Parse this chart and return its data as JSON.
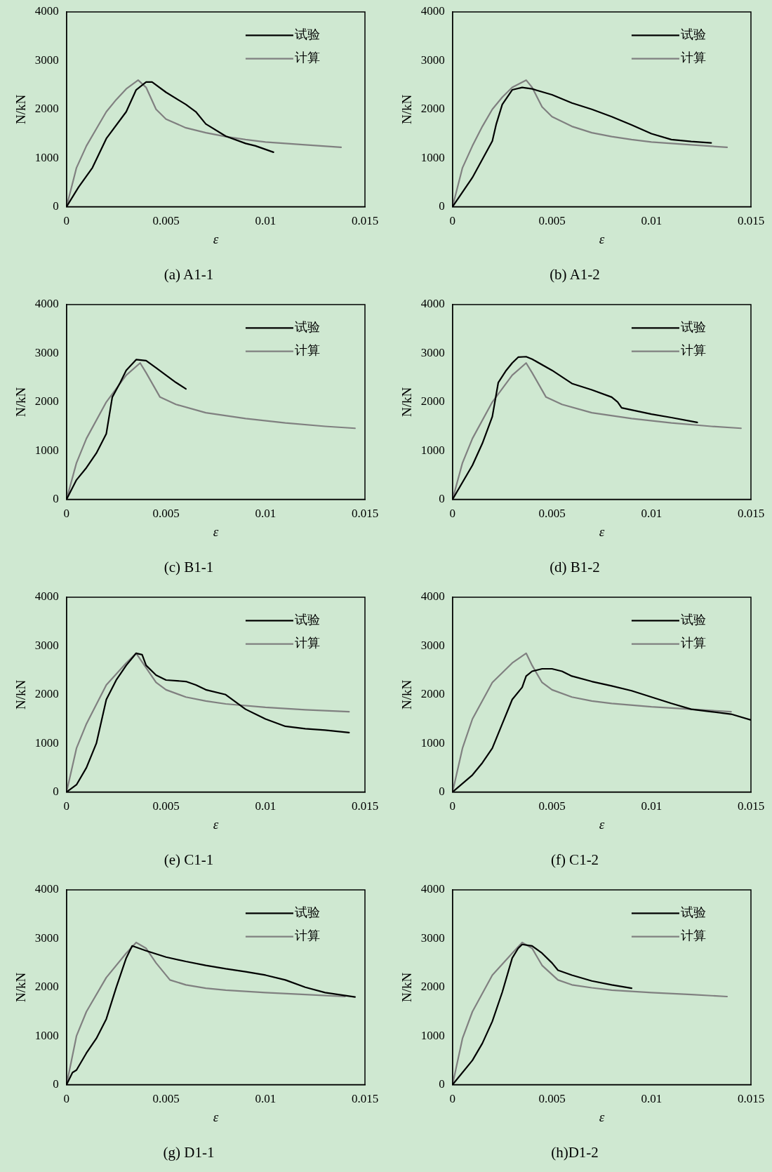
{
  "chart_data": [
    {
      "type": "line",
      "title": "(a) A1-1",
      "xlabel": "ε",
      "ylabel": "N/kN",
      "xlim": [
        0,
        0.015
      ],
      "ylim": [
        0,
        4000
      ],
      "xticks": [
        0,
        0.005,
        0.01,
        0.015
      ],
      "yticks": [
        0,
        1000,
        2000,
        3000,
        4000
      ],
      "grid": false,
      "legend": "top right",
      "marker": "none",
      "line_style": "solid",
      "series": [
        {
          "name": "试验",
          "color": "#000000",
          "x": [
            0,
            0.0006,
            0.0013,
            0.002,
            0.003,
            0.0035,
            0.004,
            0.0043,
            0.005,
            0.006,
            0.0065,
            0.007,
            0.008,
            0.009,
            0.0095,
            0.0104
          ],
          "values": [
            0,
            400,
            800,
            1400,
            1950,
            2400,
            2560,
            2560,
            2350,
            2100,
            1950,
            1700,
            1450,
            1300,
            1250,
            1120
          ]
        },
        {
          "name": "计算",
          "color": "#808080",
          "x": [
            0,
            0.0005,
            0.001,
            0.0015,
            0.002,
            0.0025,
            0.003,
            0.0036,
            0.004,
            0.0045,
            0.005,
            0.006,
            0.007,
            0.008,
            0.009,
            0.01,
            0.011,
            0.012,
            0.0138
          ],
          "values": [
            0,
            800,
            1250,
            1600,
            1950,
            2200,
            2420,
            2600,
            2450,
            2000,
            1800,
            1620,
            1520,
            1440,
            1380,
            1330,
            1300,
            1270,
            1220
          ]
        }
      ]
    },
    {
      "type": "line",
      "title": "(b) A1-2",
      "xlabel": "ε",
      "ylabel": "N/kN",
      "xlim": [
        0,
        0.015
      ],
      "ylim": [
        0,
        4000
      ],
      "xticks": [
        0,
        0.005,
        0.01,
        0.015
      ],
      "yticks": [
        0,
        1000,
        2000,
        3000,
        4000
      ],
      "grid": false,
      "legend": "top right",
      "marker": "none",
      "line_style": "solid",
      "series": [
        {
          "name": "试验",
          "color": "#000000",
          "x": [
            0,
            0.001,
            0.002,
            0.0022,
            0.0025,
            0.003,
            0.0035,
            0.004,
            0.005,
            0.006,
            0.007,
            0.008,
            0.009,
            0.01,
            0.011,
            0.012,
            0.013
          ],
          "values": [
            0,
            600,
            1350,
            1700,
            2100,
            2400,
            2450,
            2420,
            2300,
            2130,
            2000,
            1850,
            1680,
            1500,
            1380,
            1340,
            1310
          ]
        },
        {
          "name": "计算",
          "color": "#808080",
          "x": [
            0,
            0.0005,
            0.001,
            0.0015,
            0.002,
            0.0025,
            0.003,
            0.0037,
            0.004,
            0.0045,
            0.005,
            0.006,
            0.007,
            0.008,
            0.009,
            0.01,
            0.011,
            0.012,
            0.0138
          ],
          "values": [
            0,
            800,
            1250,
            1650,
            2000,
            2250,
            2450,
            2600,
            2450,
            2050,
            1850,
            1650,
            1520,
            1440,
            1380,
            1330,
            1300,
            1270,
            1220
          ]
        }
      ]
    },
    {
      "type": "line",
      "title": "(c) B1-1",
      "xlabel": "ε",
      "ylabel": "N/kN",
      "xlim": [
        0,
        0.015
      ],
      "ylim": [
        0,
        4000
      ],
      "xticks": [
        0,
        0.005,
        0.01,
        0.015
      ],
      "yticks": [
        0,
        1000,
        2000,
        3000,
        4000
      ],
      "grid": false,
      "legend": "top right",
      "marker": "none",
      "line_style": "solid",
      "series": [
        {
          "name": "试验",
          "color": "#000000",
          "x": [
            0,
            0.0005,
            0.001,
            0.0015,
            0.002,
            0.0023,
            0.0027,
            0.003,
            0.0035,
            0.004,
            0.0045,
            0.005,
            0.0055,
            0.006
          ],
          "values": [
            0,
            400,
            650,
            950,
            1350,
            2100,
            2400,
            2650,
            2870,
            2850,
            2700,
            2550,
            2400,
            2270
          ]
        },
        {
          "name": "计算",
          "color": "#808080",
          "x": [
            0,
            0.0005,
            0.001,
            0.002,
            0.003,
            0.0037,
            0.004,
            0.0047,
            0.0055,
            0.007,
            0.009,
            0.011,
            0.013,
            0.0145
          ],
          "values": [
            0,
            750,
            1250,
            2000,
            2550,
            2800,
            2600,
            2100,
            1950,
            1780,
            1660,
            1570,
            1500,
            1460
          ]
        }
      ]
    },
    {
      "type": "line",
      "title": "(d) B1-2",
      "xlabel": "ε",
      "ylabel": "N/kN",
      "xlim": [
        0,
        0.015
      ],
      "ylim": [
        0,
        4000
      ],
      "xticks": [
        0,
        0.005,
        0.01,
        0.015
      ],
      "yticks": [
        0,
        1000,
        2000,
        3000,
        4000
      ],
      "grid": false,
      "legend": "top right",
      "marker": "none",
      "line_style": "solid",
      "series": [
        {
          "name": "试验",
          "color": "#000000",
          "x": [
            0,
            0.001,
            0.0015,
            0.002,
            0.0023,
            0.0027,
            0.003,
            0.0033,
            0.0037,
            0.004,
            0.005,
            0.006,
            0.007,
            0.008,
            0.0083,
            0.0085,
            0.01,
            0.011,
            0.0123
          ],
          "values": [
            0,
            700,
            1150,
            1700,
            2400,
            2650,
            2800,
            2920,
            2930,
            2880,
            2650,
            2380,
            2250,
            2100,
            2000,
            1880,
            1750,
            1680,
            1580
          ]
        },
        {
          "name": "计算",
          "color": "#808080",
          "x": [
            0,
            0.0005,
            0.001,
            0.002,
            0.003,
            0.0037,
            0.004,
            0.0047,
            0.0055,
            0.007,
            0.009,
            0.011,
            0.013,
            0.0145
          ],
          "values": [
            0,
            750,
            1250,
            2000,
            2550,
            2800,
            2600,
            2100,
            1950,
            1780,
            1660,
            1570,
            1500,
            1460
          ]
        }
      ]
    },
    {
      "type": "line",
      "title": "(e) C1-1",
      "xlabel": "ε",
      "ylabel": "N/kN",
      "xlim": [
        0,
        0.015
      ],
      "ylim": [
        0,
        4000
      ],
      "xticks": [
        0,
        0.005,
        0.01,
        0.015
      ],
      "yticks": [
        0,
        1000,
        2000,
        3000,
        4000
      ],
      "grid": false,
      "legend": "top right",
      "marker": "none",
      "line_style": "solid",
      "series": [
        {
          "name": "试验",
          "color": "#000000",
          "x": [
            0,
            0.0005,
            0.001,
            0.0015,
            0.002,
            0.0025,
            0.003,
            0.0035,
            0.0038,
            0.004,
            0.0045,
            0.005,
            0.006,
            0.0065,
            0.007,
            0.008,
            0.009,
            0.01,
            0.011,
            0.012,
            0.013,
            0.0142
          ],
          "values": [
            0,
            150,
            500,
            1000,
            1900,
            2300,
            2600,
            2850,
            2820,
            2600,
            2400,
            2300,
            2270,
            2200,
            2100,
            2000,
            1700,
            1500,
            1350,
            1300,
            1270,
            1220
          ]
        },
        {
          "name": "计算",
          "color": "#808080",
          "x": [
            0,
            0.0005,
            0.001,
            0.002,
            0.003,
            0.0035,
            0.004,
            0.0045,
            0.005,
            0.006,
            0.007,
            0.008,
            0.01,
            0.012,
            0.0142
          ],
          "values": [
            0,
            900,
            1400,
            2200,
            2650,
            2850,
            2550,
            2250,
            2100,
            1950,
            1870,
            1810,
            1740,
            1690,
            1650
          ]
        }
      ]
    },
    {
      "type": "line",
      "title": "(f) C1-2",
      "xlabel": "ε",
      "ylabel": "N/kN",
      "xlim": [
        0,
        0.015
      ],
      "ylim": [
        0,
        4000
      ],
      "xticks": [
        0,
        0.005,
        0.01,
        0.015
      ],
      "yticks": [
        0,
        1000,
        2000,
        3000,
        4000
      ],
      "grid": false,
      "legend": "top right",
      "marker": "none",
      "line_style": "solid",
      "series": [
        {
          "name": "试验",
          "color": "#000000",
          "x": [
            0,
            0.001,
            0.0015,
            0.002,
            0.0025,
            0.003,
            0.0035,
            0.0037,
            0.004,
            0.0045,
            0.005,
            0.0055,
            0.006,
            0.007,
            0.008,
            0.009,
            0.01,
            0.011,
            0.012,
            0.013,
            0.014,
            0.015
          ],
          "values": [
            0,
            350,
            600,
            900,
            1400,
            1900,
            2150,
            2380,
            2480,
            2530,
            2530,
            2480,
            2380,
            2270,
            2180,
            2080,
            1950,
            1820,
            1700,
            1650,
            1600,
            1480
          ]
        },
        {
          "name": "计算",
          "color": "#808080",
          "x": [
            0,
            0.0005,
            0.001,
            0.002,
            0.003,
            0.0037,
            0.004,
            0.0045,
            0.005,
            0.006,
            0.007,
            0.008,
            0.01,
            0.012,
            0.014
          ],
          "values": [
            0,
            900,
            1500,
            2250,
            2650,
            2850,
            2600,
            2250,
            2100,
            1950,
            1870,
            1820,
            1750,
            1700,
            1650
          ]
        }
      ]
    },
    {
      "type": "line",
      "title": "(g) D1-1",
      "xlabel": "ε",
      "ylabel": "N/kN",
      "xlim": [
        0,
        0.015
      ],
      "ylim": [
        0,
        4000
      ],
      "xticks": [
        0,
        0.005,
        0.01,
        0.015
      ],
      "yticks": [
        0,
        1000,
        2000,
        3000,
        4000
      ],
      "grid": false,
      "legend": "top right",
      "marker": "none",
      "line_style": "solid",
      "series": [
        {
          "name": "试验",
          "color": "#000000",
          "x": [
            0,
            0.0003,
            0.0005,
            0.001,
            0.0015,
            0.002,
            0.0025,
            0.003,
            0.0033,
            0.004,
            0.005,
            0.006,
            0.007,
            0.008,
            0.009,
            0.01,
            0.011,
            0.012,
            0.013,
            0.0145
          ],
          "values": [
            0,
            250,
            300,
            650,
            950,
            1350,
            2000,
            2600,
            2850,
            2750,
            2620,
            2530,
            2450,
            2380,
            2320,
            2250,
            2150,
            2000,
            1890,
            1800
          ]
        },
        {
          "name": "计算",
          "color": "#808080",
          "x": [
            0,
            0.0005,
            0.001,
            0.002,
            0.003,
            0.0035,
            0.004,
            0.0045,
            0.0052,
            0.006,
            0.007,
            0.008,
            0.01,
            0.012,
            0.014
          ],
          "values": [
            0,
            1000,
            1500,
            2200,
            2700,
            2920,
            2800,
            2500,
            2150,
            2050,
            1980,
            1940,
            1890,
            1850,
            1810
          ]
        }
      ]
    },
    {
      "type": "line",
      "title": "(h)D1-2",
      "xlabel": "ε",
      "ylabel": "N/kN",
      "xlim": [
        0,
        0.015
      ],
      "ylim": [
        0,
        4000
      ],
      "xticks": [
        0,
        0.005,
        0.01,
        0.015
      ],
      "yticks": [
        0,
        1000,
        2000,
        3000,
        4000
      ],
      "grid": false,
      "legend": "top right",
      "marker": "none",
      "line_style": "solid",
      "series": [
        {
          "name": "试验",
          "color": "#000000",
          "x": [
            0,
            0.001,
            0.0015,
            0.002,
            0.0025,
            0.003,
            0.0033,
            0.0035,
            0.004,
            0.0045,
            0.005,
            0.0053,
            0.006,
            0.007,
            0.008,
            0.009
          ],
          "values": [
            0,
            500,
            850,
            1300,
            1900,
            2600,
            2800,
            2880,
            2850,
            2700,
            2500,
            2350,
            2250,
            2130,
            2050,
            1980
          ]
        },
        {
          "name": "计算",
          "color": "#808080",
          "x": [
            0,
            0.0005,
            0.001,
            0.002,
            0.003,
            0.0035,
            0.004,
            0.0045,
            0.0053,
            0.006,
            0.007,
            0.008,
            0.01,
            0.012,
            0.0138
          ],
          "values": [
            0,
            950,
            1500,
            2250,
            2700,
            2920,
            2800,
            2450,
            2150,
            2050,
            1990,
            1940,
            1890,
            1850,
            1810
          ]
        }
      ]
    }
  ]
}
